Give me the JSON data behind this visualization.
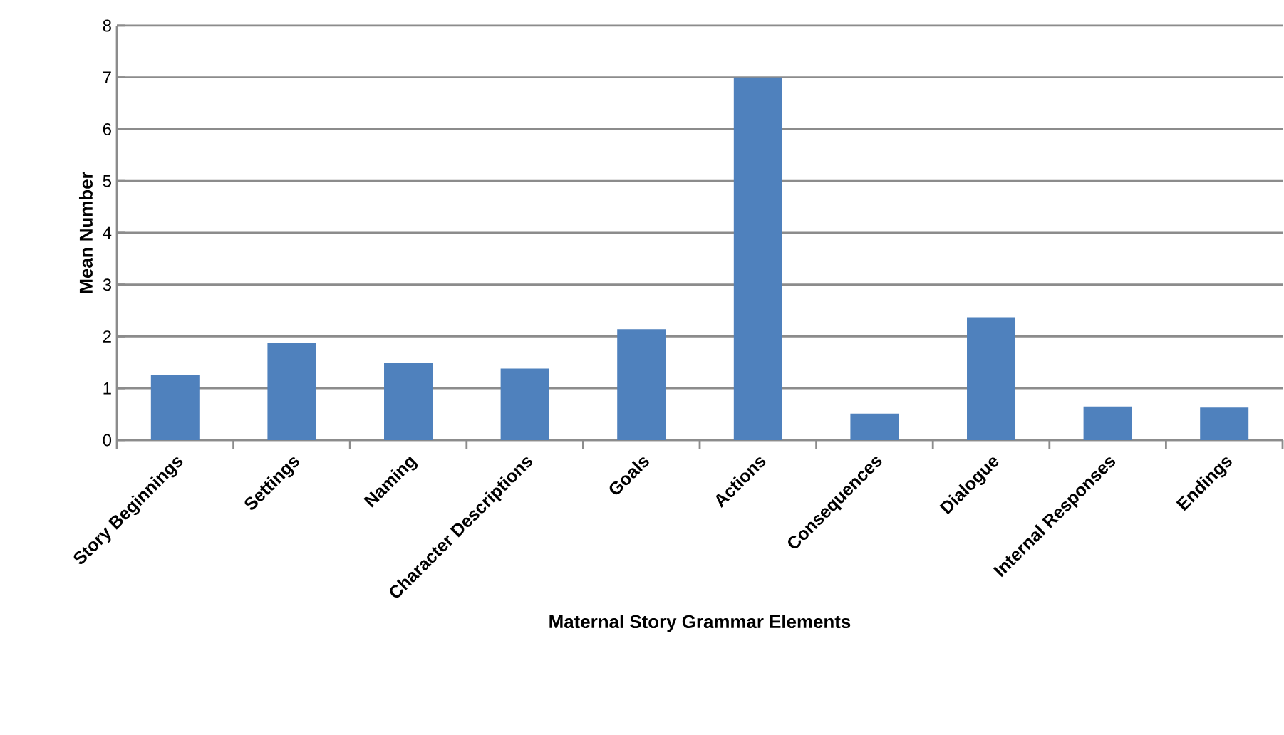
{
  "chart_data": {
    "type": "bar",
    "xlabel": "Maternal Story Grammar Elements",
    "ylabel": "Mean Number",
    "categories": [
      "Story Beginnings",
      "Settings",
      "Naming",
      "Character Descriptions",
      "Goals",
      "Actions",
      "Consequences",
      "Dialogue",
      "Internal Responses",
      "Endings"
    ],
    "values": [
      1.26,
      1.88,
      1.49,
      1.38,
      2.14,
      7.0,
      0.51,
      2.37,
      0.65,
      0.63
    ],
    "color": "#4f81bd",
    "ylim": [
      0,
      8
    ],
    "yticks": [
      0,
      1,
      2,
      3,
      4,
      5,
      6,
      7,
      8
    ],
    "grid": "y"
  }
}
